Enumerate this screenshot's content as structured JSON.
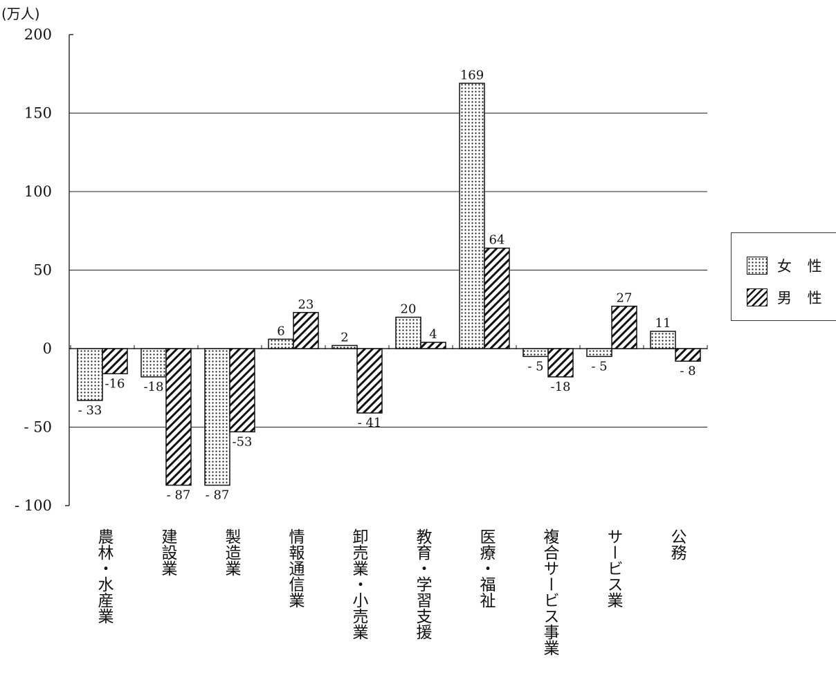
{
  "chart_data": {
    "type": "bar",
    "unit_label": "(万人)",
    "categories": [
      "農林・水産業",
      "建設業",
      "製造業",
      "情報通信業",
      "卸売業・小売業",
      "教育・学習支援",
      "医療・福祉",
      "複合サービス事業",
      "サービス業",
      "公務"
    ],
    "series": [
      {
        "name": "女 性",
        "pattern": "dots",
        "values": [
          -33,
          -18,
          -87,
          6,
          2,
          20,
          169,
          -5,
          -5,
          11
        ]
      },
      {
        "name": "男 性",
        "pattern": "hatch",
        "values": [
          -16,
          -87,
          -53,
          23,
          -41,
          4,
          64,
          -18,
          27,
          -8
        ]
      }
    ],
    "data_labels": {
      "female": [
        "- 33",
        "-18",
        "- 87",
        "6",
        "2",
        "20",
        "169",
        "- 5",
        "- 5",
        "11"
      ],
      "male": [
        "-16",
        "- 87",
        "-53",
        "23",
        "- 41",
        "4",
        "64",
        "-18",
        "27",
        "- 8"
      ]
    },
    "y_ticks": [
      200,
      150,
      100,
      50,
      0,
      -50,
      -100
    ],
    "y_tick_labels": [
      "200",
      "150",
      "100",
      "50",
      "0",
      "- 50",
      "- 100"
    ],
    "ylim": [
      -100,
      200
    ],
    "grid": true,
    "legend_position": "right",
    "colors": {
      "ink": "#111111",
      "background": "#ffffff"
    }
  }
}
